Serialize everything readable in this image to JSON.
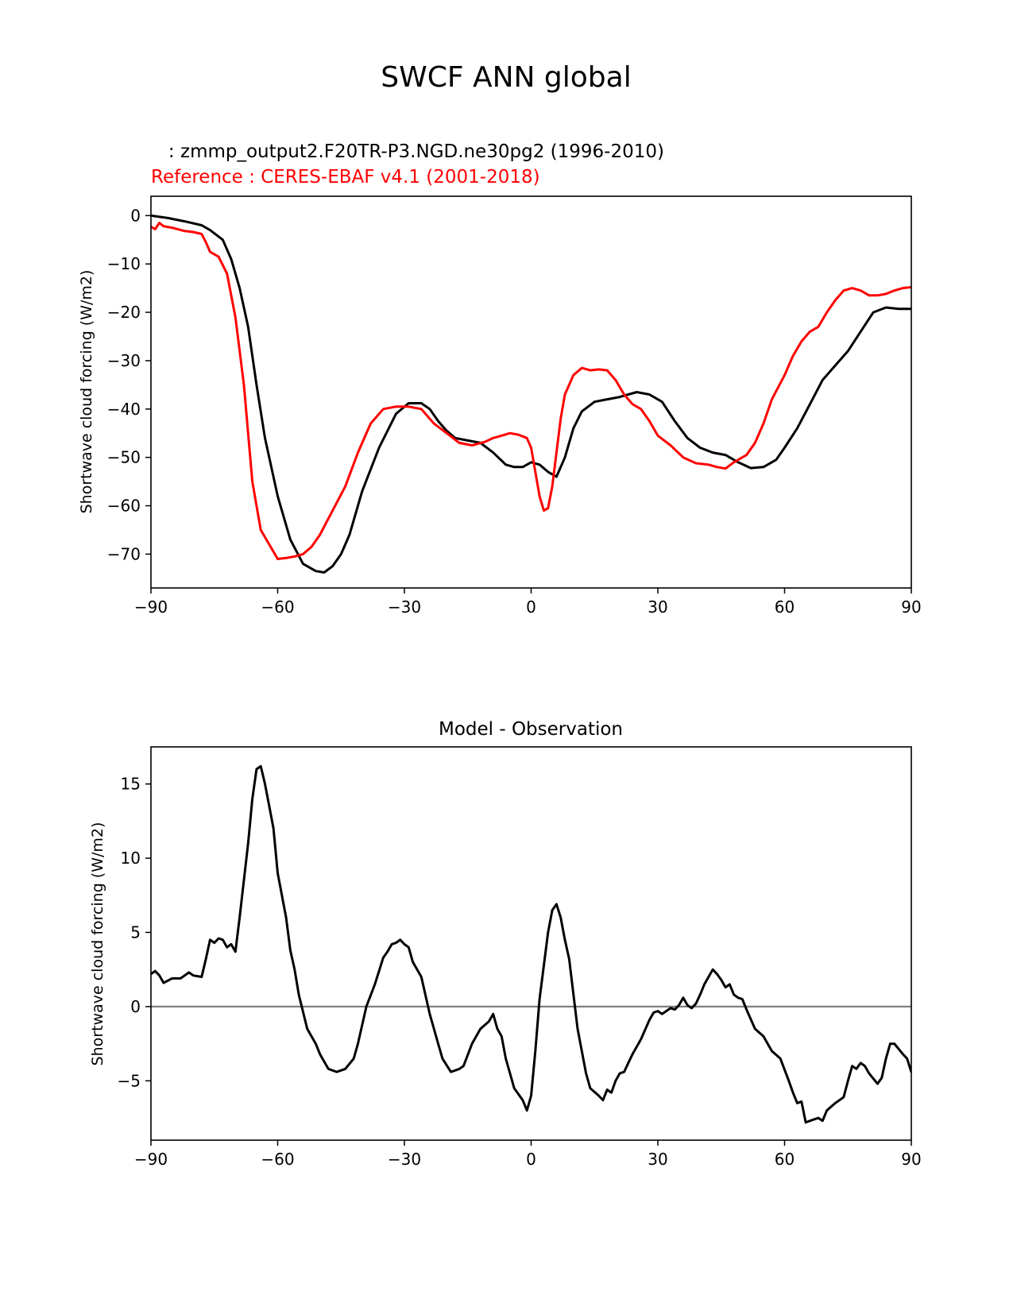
{
  "figure": {
    "title": "SWCF ANN global"
  },
  "colors": {
    "test": "#000000",
    "reference": "#ff0000",
    "zero_line": "#808080",
    "axes": "#000000",
    "background": "#ffffff"
  },
  "chart_data": [
    {
      "type": "line",
      "legend_test": "   : zmmp_output2.F20TR-P3.NGD.ne30pg2 (1996-2010)",
      "legend_reference": "Reference : CERES-EBAF v4.1 (2001-2018)",
      "xlabel": "",
      "ylabel": "Shortwave cloud forcing (W/m2)",
      "xlim": [
        -90,
        90
      ],
      "ylim": [
        -77,
        4
      ],
      "xticks": [
        -90,
        -60,
        -30,
        0,
        30,
        60,
        90
      ],
      "xtick_labels": [
        "−90",
        "−60",
        "−30",
        "0",
        "30",
        "60",
        "90"
      ],
      "yticks": [
        0,
        -10,
        -20,
        -30,
        -40,
        -50,
        -60,
        -70
      ],
      "ytick_labels": [
        "0",
        "−10",
        "−20",
        "−30",
        "−40",
        "−50",
        "−60",
        "−70"
      ],
      "series": [
        {
          "name": "test",
          "color": "#000000",
          "x": [
            -90,
            -86,
            -82,
            -78,
            -76,
            -73,
            -71,
            -69,
            -67,
            -65,
            -63,
            -60,
            -57,
            -54,
            -51,
            -49,
            -47,
            -45,
            -43,
            -40,
            -36,
            -32,
            -29,
            -26,
            -24,
            -22,
            -20,
            -18,
            -15,
            -12,
            -9,
            -6,
            -4,
            -2,
            0,
            2,
            4,
            6,
            8,
            10,
            12,
            15,
            18,
            21,
            23,
            25,
            28,
            31,
            34,
            37,
            40,
            43,
            46,
            49,
            52,
            55,
            58,
            60,
            63,
            66,
            69,
            72,
            75,
            78,
            81,
            84,
            87,
            90
          ],
          "y": [
            0,
            -0.5,
            -1.2,
            -2,
            -3,
            -5,
            -9,
            -15,
            -23,
            -35,
            -46,
            -58,
            -67,
            -72,
            -73.5,
            -73.8,
            -72.5,
            -70,
            -66,
            -57,
            -48,
            -41,
            -38.8,
            -38.8,
            -40,
            -42.5,
            -44.5,
            -46,
            -46.5,
            -47,
            -49,
            -51.5,
            -52,
            -52,
            -51,
            -51.5,
            -53,
            -54,
            -50,
            -44,
            -40.5,
            -38.5,
            -38,
            -37.5,
            -37,
            -36.5,
            -37,
            -38.5,
            -42.5,
            -46,
            -48,
            -49,
            -49.5,
            -51,
            -52.2,
            -52,
            -50.5,
            -48,
            -44,
            -39,
            -34,
            -31,
            -28,
            -24,
            -20,
            -19,
            -19.3,
            -19.3
          ]
        },
        {
          "name": "reference",
          "color": "#ff0000",
          "x": [
            -90,
            -89,
            -88,
            -87,
            -85,
            -82,
            -80,
            -78,
            -77,
            -76,
            -74,
            -72,
            -70,
            -68,
            -66,
            -64,
            -62,
            -60,
            -58,
            -56,
            -54,
            -52,
            -50,
            -47,
            -44,
            -41,
            -38,
            -35,
            -32,
            -29,
            -26,
            -23,
            -20,
            -17,
            -14,
            -11,
            -9,
            -7,
            -5,
            -3,
            -1,
            0,
            1,
            2,
            3,
            4,
            5,
            6,
            7,
            8,
            10,
            12,
            14,
            16,
            18,
            20,
            22,
            24,
            26,
            28,
            30,
            33,
            36,
            39,
            42,
            44,
            46,
            48,
            51,
            53,
            55,
            57,
            60,
            62,
            64,
            66,
            68,
            70,
            72,
            74,
            76,
            78,
            79,
            80,
            82,
            84,
            86,
            88,
            90
          ],
          "y": [
            -2.3,
            -2.8,
            -1.5,
            -2.2,
            -2.5,
            -3.2,
            -3.4,
            -3.8,
            -5.5,
            -7.5,
            -8.5,
            -12,
            -21,
            -35,
            -55,
            -65,
            -68,
            -71,
            -70.8,
            -70.5,
            -70,
            -68.5,
            -66,
            -61,
            -56,
            -49,
            -43,
            -40,
            -39.5,
            -39.5,
            -40,
            -43,
            -45,
            -47,
            -47.5,
            -46.8,
            -46,
            -45.5,
            -45,
            -45.3,
            -46,
            -48,
            -53,
            -58,
            -61,
            -60.5,
            -56,
            -49,
            -42,
            -37,
            -33,
            -31.5,
            -32,
            -31.8,
            -32,
            -34,
            -37,
            -39,
            -40,
            -42.5,
            -45.5,
            -47.5,
            -50,
            -51.2,
            -51.5,
            -52,
            -52.3,
            -51,
            -49.5,
            -47,
            -43,
            -38,
            -33,
            -29,
            -26,
            -24,
            -23,
            -20,
            -17.5,
            -15.5,
            -15,
            -15.5,
            -16,
            -16.5,
            -16.5,
            -16.2,
            -15.5,
            -15,
            -14.8
          ]
        }
      ]
    },
    {
      "type": "line",
      "title": "Model - Observation",
      "xlabel": "",
      "ylabel": "Shortwave cloud forcing (W/m2)",
      "xlim": [
        -90,
        90
      ],
      "ylim": [
        -9,
        17.5
      ],
      "xticks": [
        -90,
        -60,
        -30,
        0,
        30,
        60,
        90
      ],
      "xtick_labels": [
        "−90",
        "−60",
        "−30",
        "0",
        "30",
        "60",
        "90"
      ],
      "yticks": [
        15,
        10,
        5,
        0,
        -5
      ],
      "ytick_labels": [
        "15",
        "10",
        "5",
        "0",
        "−5"
      ],
      "hline": 0,
      "series": [
        {
          "name": "difference",
          "color": "#000000",
          "x": [
            -90,
            -89,
            -88,
            -87,
            -85,
            -83,
            -82,
            -81,
            -80,
            -78,
            -77,
            -76,
            -75,
            -74,
            -73,
            -72,
            -71,
            -70,
            -69,
            -67,
            -66,
            -65,
            -64,
            -63,
            -62,
            -61,
            -60,
            -59,
            -58,
            -57,
            -56,
            -55,
            -53,
            -51,
            -50,
            -48,
            -46,
            -44,
            -42,
            -41,
            -39,
            -37,
            -35,
            -34,
            -33,
            -32,
            -31,
            -30,
            -29,
            -28,
            -26,
            -24,
            -22,
            -21,
            -19,
            -17,
            -16,
            -14,
            -12,
            -10,
            -9,
            -8,
            -7,
            -6,
            -5,
            -4,
            -2,
            -1,
            0,
            1,
            2,
            4,
            5,
            6,
            7,
            8,
            9,
            11,
            13,
            14,
            16,
            17,
            18,
            19,
            20,
            21,
            22,
            24,
            26,
            28,
            29,
            30,
            31,
            32,
            33,
            34,
            35,
            36,
            37,
            38,
            39,
            40,
            41,
            43,
            44,
            45,
            46,
            47,
            48,
            49,
            50,
            51,
            53,
            55,
            56,
            57,
            59,
            61,
            62,
            63,
            64,
            65,
            66,
            67,
            68,
            69,
            70,
            72,
            73,
            74,
            75,
            76,
            77,
            78,
            79,
            80,
            82,
            83,
            84,
            85,
            86,
            88,
            89,
            90
          ],
          "y": [
            2.2,
            2.4,
            2.1,
            1.6,
            1.9,
            1.9,
            2.1,
            2.3,
            2.1,
            2.0,
            3.2,
            4.5,
            4.3,
            4.6,
            4.5,
            4.0,
            4.2,
            3.7,
            6.0,
            11.0,
            14.0,
            16.0,
            16.2,
            15.0,
            13.5,
            12.0,
            9.0,
            7.5,
            6.0,
            3.8,
            2.5,
            0.8,
            -1.5,
            -2.5,
            -3.2,
            -4.2,
            -4.4,
            -4.2,
            -3.5,
            -2.5,
            0,
            1.5,
            3.3,
            3.7,
            4.2,
            4.3,
            4.5,
            4.2,
            4.0,
            3.0,
            2.0,
            -0.5,
            -2.5,
            -3.5,
            -4.4,
            -4.2,
            -4.0,
            -2.5,
            -1.5,
            -1.0,
            -0.5,
            -1.5,
            -2.0,
            -3.5,
            -4.5,
            -5.5,
            -6.3,
            -7.0,
            -6.0,
            -3.0,
            0.5,
            5.0,
            6.5,
            6.9,
            6.0,
            4.5,
            3.2,
            -1.5,
            -4.5,
            -5.5,
            -6.0,
            -6.3,
            -5.6,
            -5.8,
            -5.0,
            -4.5,
            -4.4,
            -3.2,
            -2.2,
            -0.9,
            -0.4,
            -0.3,
            -0.5,
            -0.3,
            -0.1,
            -0.2,
            0.1,
            0.6,
            0.1,
            -0.1,
            0.2,
            0.8,
            1.5,
            2.5,
            2.2,
            1.8,
            1.3,
            1.5,
            0.8,
            0.6,
            0.5,
            -0.2,
            -1.5,
            -2.0,
            -2.5,
            -3.0,
            -3.5,
            -5.0,
            -5.8,
            -6.5,
            -6.4,
            -7.8,
            -7.7,
            -7.6,
            -7.5,
            -7.7,
            -7.0,
            -6.5,
            -6.3,
            -6.1,
            -5.0,
            -4.0,
            -4.2,
            -3.8,
            -4.0,
            -4.5,
            -5.2,
            -4.8,
            -3.5,
            -2.5,
            -2.5,
            -3.2,
            -3.5,
            -4.4
          ]
        }
      ]
    }
  ]
}
